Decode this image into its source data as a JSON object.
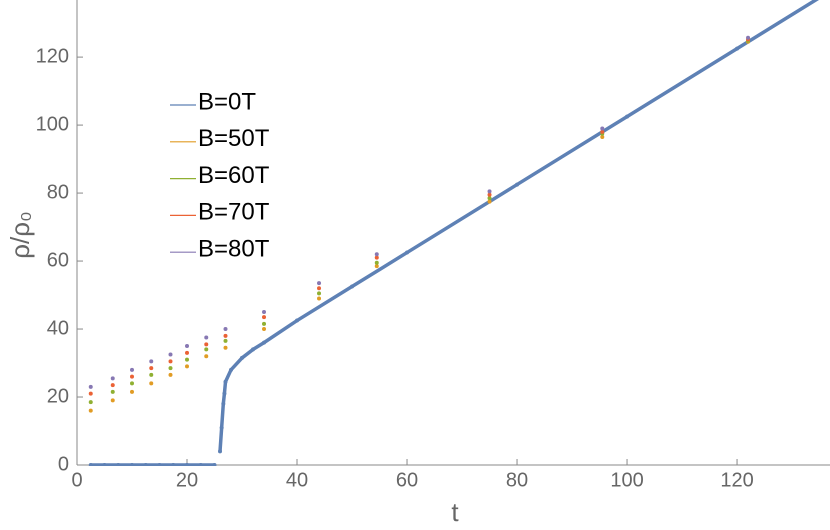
{
  "chart_data": {
    "type": "scatter",
    "x_label": "t",
    "y_label": "ρ/ρ₀",
    "xlim": [
      0,
      136.9
    ],
    "ylim": [
      0,
      136.8
    ],
    "xticks": [
      0,
      20,
      40,
      60,
      80,
      100,
      120
    ],
    "yticks": [
      0,
      20,
      40,
      60,
      80,
      100,
      120
    ],
    "series": [
      {
        "name": "B=0T",
        "color": "#5e81b5",
        "style": "line",
        "x": [
          2.5,
          5,
          7.5,
          10,
          12.5,
          15,
          17.5,
          20,
          22.5,
          25,
          25.5,
          26,
          26.3,
          26.6,
          26.8,
          27,
          28,
          30,
          32,
          34,
          40,
          50,
          60,
          80,
          100,
          120,
          136
        ],
        "values": [
          0,
          0,
          0,
          0,
          0,
          0,
          0,
          0,
          0,
          0,
          null,
          4,
          11,
          18,
          21,
          24.5,
          28,
          31.5,
          34,
          36,
          42.5,
          52.5,
          62.5,
          82.5,
          102.5,
          122.5,
          138.5
        ]
      },
      {
        "name": "B=50T",
        "color": "#e19c24",
        "x": [
          2.5,
          6.5,
          10,
          13.5,
          17,
          20,
          23.5,
          27,
          34,
          44,
          54.5,
          75,
          95.5,
          122
        ],
        "values": [
          16,
          19,
          21.5,
          24,
          26.5,
          29,
          32,
          34.5,
          40,
          49,
          58.5,
          77.5,
          96.5,
          124.5
        ]
      },
      {
        "name": "B=60T",
        "color": "#8fb032",
        "x": [
          2.5,
          6.5,
          10,
          13.5,
          17,
          20,
          23.5,
          27,
          34,
          44,
          54.5,
          75,
          95.5,
          122
        ],
        "values": [
          18.5,
          21.5,
          24,
          26.5,
          28.5,
          31,
          34,
          36.5,
          41.5,
          50.5,
          59.5,
          78.5,
          97.5,
          124.8
        ]
      },
      {
        "name": "B=70T",
        "color": "#eb6235",
        "x": [
          2.5,
          6.5,
          10,
          13.5,
          17,
          20,
          23.5,
          27,
          34,
          44,
          54.5,
          75,
          95.5,
          122
        ],
        "values": [
          21,
          23.5,
          26,
          28.5,
          30.5,
          33,
          35.5,
          38,
          43.5,
          52,
          61,
          79.5,
          98,
          125.2
        ]
      },
      {
        "name": "B=80T",
        "color": "#8778b3",
        "x": [
          2.5,
          6.5,
          10,
          13.5,
          17,
          20,
          23.5,
          27,
          34,
          44,
          54.5,
          75,
          95.5,
          122
        ],
        "values": [
          23,
          25.5,
          28,
          30.5,
          32.5,
          35,
          37.5,
          40,
          45,
          53.5,
          62,
          80.5,
          99,
          125.7
        ]
      }
    ]
  }
}
